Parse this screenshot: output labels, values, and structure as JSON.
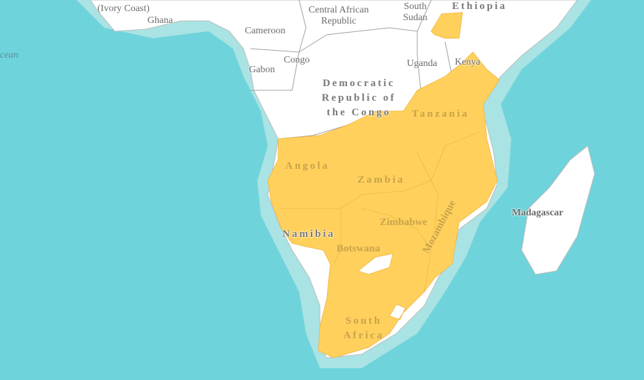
{
  "map": {
    "colors": {
      "ocean": "#6fd3db",
      "shelf": "#a9e3e3",
      "land": "#ffffff",
      "border": "#9a9a9a",
      "range": "#ffd15c"
    },
    "labels": {
      "ivory_coast": "(Ivory Coast)",
      "ghana": "Ghana",
      "car": "Central African Republic",
      "south_sudan": "South Sudan",
      "ethiopia": "Ethiopia",
      "cameroon": "Cameroon",
      "congo": "Congo",
      "gabon": "Gabon",
      "uganda": "Uganda",
      "kenya": "Kenya",
      "drc": "Democratic Republic of the Congo",
      "tanzania": "Tanzania",
      "angola": "Angola",
      "zambia": "Zambia",
      "zimbabwe": "Zimbabwe",
      "mozambique": "Mozambique",
      "namibia": "Namibia",
      "botswana": "Botswana",
      "south_africa": "South Africa",
      "madagascar": "Madagascar",
      "ocean": "cean"
    }
  }
}
